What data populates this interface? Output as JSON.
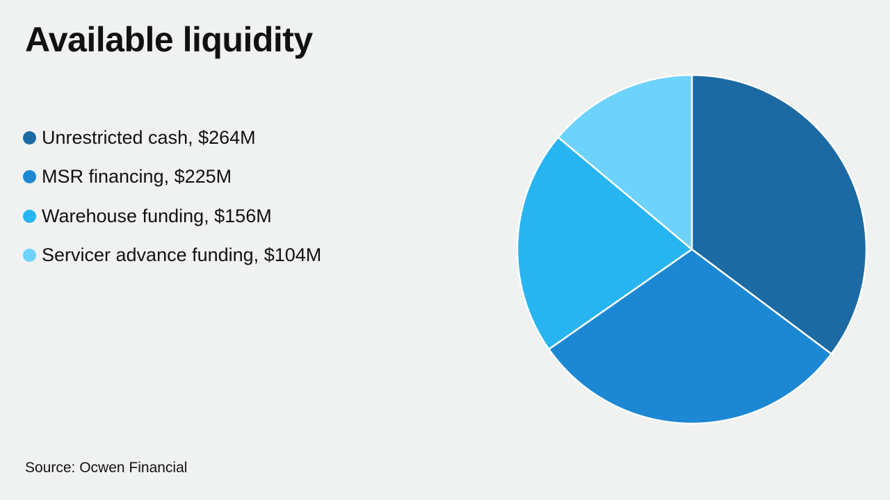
{
  "chart_data": {
    "type": "pie",
    "title": "Available liquidity",
    "unit": "$M",
    "slices": [
      {
        "label": "Unrestricted cash, $264M",
        "value": 264,
        "color": "#1b6aa3"
      },
      {
        "label": "MSR financing, $225M",
        "value": 225,
        "color": "#1c88d4"
      },
      {
        "label": "Warehouse funding, $156M",
        "value": 156,
        "color": "#27b5f1"
      },
      {
        "label": "Servicer advance funding, $104M",
        "value": 104,
        "color": "#6dd3fd"
      }
    ],
    "legend_position": "left",
    "source": "Source: Ocwen Financial"
  }
}
